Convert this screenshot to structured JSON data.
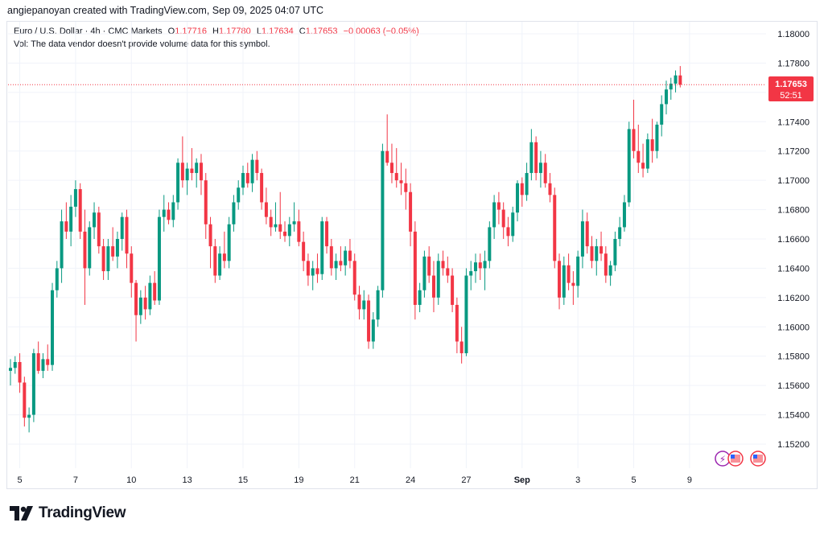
{
  "header": {
    "creator": "angiepanoyan created with TradingView.com, Sep 09, 2025 04:07 UTC"
  },
  "legend": {
    "symbol": "Euro / U.S. Dollar · 4h · CMC Markets",
    "o_label": "O",
    "o": "1.17716",
    "h_label": "H",
    "h": "1.17780",
    "l_label": "L",
    "l": "1.17634",
    "c_label": "C",
    "c": "1.17653",
    "change": "−0.00063 (−0.05%)",
    "vol_note": "Vol: The data vendor doesn't provide volume data for this symbol."
  },
  "price_tag": {
    "price": "1.17653",
    "countdown": "52:51"
  },
  "footer": {
    "brand": "TradingView"
  },
  "colors": {
    "up": "#089981",
    "down": "#f23645",
    "grid": "#f0f3fa",
    "text": "#131722"
  },
  "chart_data": {
    "type": "candlestick",
    "title": "Euro / U.S. Dollar · 4h · CMC Markets",
    "ylim": [
      1.1505,
      1.1815
    ],
    "y_ticks": [
      "1.18000",
      "1.17800",
      "1.17600",
      "1.17400",
      "1.17200",
      "1.17000",
      "1.16800",
      "1.16600",
      "1.16400",
      "1.16200",
      "1.16000",
      "1.15800",
      "1.15600",
      "1.15400",
      "1.15200"
    ],
    "x_ticks": [
      {
        "i": 2,
        "label": "5"
      },
      {
        "i": 14,
        "label": "7"
      },
      {
        "i": 26,
        "label": "10"
      },
      {
        "i": 38,
        "label": "13"
      },
      {
        "i": 50,
        "label": "15"
      },
      {
        "i": 62,
        "label": "19"
      },
      {
        "i": 74,
        "label": "21"
      },
      {
        "i": 86,
        "label": "24"
      },
      {
        "i": 98,
        "label": "27"
      },
      {
        "i": 110,
        "label": "Sep"
      },
      {
        "i": 122,
        "label": "3"
      },
      {
        "i": 134,
        "label": "5"
      },
      {
        "i": 146,
        "label": "9"
      }
    ],
    "current_price": 1.17653,
    "candles": [
      [
        1.157,
        1.1578,
        1.156,
        1.1572
      ],
      [
        1.1572,
        1.158,
        1.1568,
        1.1576
      ],
      [
        1.1576,
        1.1582,
        1.1555,
        1.1562
      ],
      [
        1.1562,
        1.1566,
        1.1532,
        1.1538
      ],
      [
        1.1538,
        1.1545,
        1.1528,
        1.154
      ],
      [
        1.154,
        1.1585,
        1.1535,
        1.1582
      ],
      [
        1.1582,
        1.159,
        1.1568,
        1.157
      ],
      [
        1.157,
        1.1582,
        1.1565,
        1.1578
      ],
      [
        1.1578,
        1.1588,
        1.157,
        1.1574
      ],
      [
        1.1574,
        1.163,
        1.157,
        1.1625
      ],
      [
        1.1625,
        1.1645,
        1.162,
        1.164
      ],
      [
        1.164,
        1.168,
        1.163,
        1.1672
      ],
      [
        1.1672,
        1.1685,
        1.166,
        1.1665
      ],
      [
        1.1665,
        1.169,
        1.1655,
        1.1682
      ],
      [
        1.1682,
        1.17,
        1.1675,
        1.1694
      ],
      [
        1.1694,
        1.1698,
        1.166,
        1.1665
      ],
      [
        1.1665,
        1.168,
        1.1615,
        1.164
      ],
      [
        1.164,
        1.1672,
        1.1635,
        1.1668
      ],
      [
        1.1668,
        1.1685,
        1.166,
        1.1678
      ],
      [
        1.1678,
        1.1682,
        1.165,
        1.1655
      ],
      [
        1.1655,
        1.166,
        1.1632,
        1.1638
      ],
      [
        1.1638,
        1.166,
        1.1632,
        1.1655
      ],
      [
        1.1655,
        1.1668,
        1.1645,
        1.1648
      ],
      [
        1.1648,
        1.1665,
        1.164,
        1.166
      ],
      [
        1.166,
        1.1678,
        1.1652,
        1.1675
      ],
      [
        1.1675,
        1.168,
        1.164,
        1.165
      ],
      [
        1.165,
        1.1655,
        1.162,
        1.163
      ],
      [
        1.163,
        1.1632,
        1.159,
        1.1608
      ],
      [
        1.1608,
        1.1625,
        1.1602,
        1.162
      ],
      [
        1.162,
        1.1628,
        1.1605,
        1.1612
      ],
      [
        1.1612,
        1.1635,
        1.1608,
        1.163
      ],
      [
        1.163,
        1.1638,
        1.1615,
        1.1618
      ],
      [
        1.1618,
        1.168,
        1.1615,
        1.1675
      ],
      [
        1.1675,
        1.169,
        1.1665,
        1.168
      ],
      [
        1.168,
        1.1685,
        1.167,
        1.1673
      ],
      [
        1.1673,
        1.169,
        1.1668,
        1.1685
      ],
      [
        1.1685,
        1.1715,
        1.168,
        1.1712
      ],
      [
        1.1712,
        1.173,
        1.1695,
        1.17
      ],
      [
        1.17,
        1.1712,
        1.169,
        1.1708
      ],
      [
        1.1708,
        1.1722,
        1.17,
        1.1705
      ],
      [
        1.1705,
        1.1715,
        1.1695,
        1.1712
      ],
      [
        1.1712,
        1.1718,
        1.169,
        1.17
      ],
      [
        1.17,
        1.1705,
        1.166,
        1.167
      ],
      [
        1.167,
        1.1675,
        1.164,
        1.1655
      ],
      [
        1.1655,
        1.166,
        1.163,
        1.1635
      ],
      [
        1.1635,
        1.1655,
        1.1632,
        1.165
      ],
      [
        1.165,
        1.1665,
        1.164,
        1.1645
      ],
      [
        1.1645,
        1.1675,
        1.164,
        1.167
      ],
      [
        1.167,
        1.169,
        1.1665,
        1.1685
      ],
      [
        1.1685,
        1.17,
        1.168,
        1.1695
      ],
      [
        1.1695,
        1.171,
        1.169,
        1.1705
      ],
      [
        1.1705,
        1.1712,
        1.1695,
        1.1698
      ],
      [
        1.1698,
        1.1718,
        1.1692,
        1.1714
      ],
      [
        1.1714,
        1.172,
        1.17,
        1.1705
      ],
      [
        1.1705,
        1.1708,
        1.168,
        1.1685
      ],
      [
        1.1685,
        1.1695,
        1.167,
        1.1675
      ],
      [
        1.1675,
        1.168,
        1.1662,
        1.1668
      ],
      [
        1.1668,
        1.1685,
        1.1665,
        1.167
      ],
      [
        1.167,
        1.1692,
        1.166,
        1.1665
      ],
      [
        1.1665,
        1.1672,
        1.1658,
        1.1662
      ],
      [
        1.1662,
        1.1675,
        1.1655,
        1.167
      ],
      [
        1.167,
        1.1685,
        1.1665,
        1.1672
      ],
      [
        1.1672,
        1.168,
        1.1655,
        1.1658
      ],
      [
        1.1658,
        1.1665,
        1.1638,
        1.1645
      ],
      [
        1.1645,
        1.165,
        1.1628,
        1.1635
      ],
      [
        1.1635,
        1.1645,
        1.1625,
        1.164
      ],
      [
        1.164,
        1.165,
        1.163,
        1.1636
      ],
      [
        1.1636,
        1.1675,
        1.1632,
        1.1672
      ],
      [
        1.1672,
        1.1675,
        1.165,
        1.1655
      ],
      [
        1.1655,
        1.166,
        1.1635,
        1.164
      ],
      [
        1.164,
        1.165,
        1.1632,
        1.1645
      ],
      [
        1.1645,
        1.1655,
        1.1638,
        1.1642
      ],
      [
        1.1642,
        1.1655,
        1.1635,
        1.1652
      ],
      [
        1.1652,
        1.166,
        1.164,
        1.1645
      ],
      [
        1.1645,
        1.165,
        1.1618,
        1.1622
      ],
      [
        1.1622,
        1.1628,
        1.1605,
        1.1612
      ],
      [
        1.1612,
        1.1625,
        1.1605,
        1.1618
      ],
      [
        1.1618,
        1.1622,
        1.1585,
        1.159
      ],
      [
        1.159,
        1.161,
        1.1585,
        1.1605
      ],
      [
        1.1605,
        1.1628,
        1.16,
        1.1625
      ],
      [
        1.1625,
        1.1725,
        1.162,
        1.172
      ],
      [
        1.172,
        1.1745,
        1.171,
        1.1712
      ],
      [
        1.1712,
        1.1725,
        1.1698,
        1.1705
      ],
      [
        1.1705,
        1.1722,
        1.1695,
        1.17
      ],
      [
        1.17,
        1.1712,
        1.169,
        1.1698
      ],
      [
        1.1698,
        1.1708,
        1.168,
        1.1692
      ],
      [
        1.1692,
        1.1698,
        1.1655,
        1.1665
      ],
      [
        1.1665,
        1.1672,
        1.1605,
        1.1615
      ],
      [
        1.1615,
        1.163,
        1.161,
        1.1625
      ],
      [
        1.1625,
        1.1652,
        1.162,
        1.1648
      ],
      [
        1.1648,
        1.1655,
        1.163,
        1.1635
      ],
      [
        1.1635,
        1.1645,
        1.161,
        1.162
      ],
      [
        1.162,
        1.165,
        1.1615,
        1.1645
      ],
      [
        1.1645,
        1.1652,
        1.1635,
        1.164
      ],
      [
        1.164,
        1.1648,
        1.163,
        1.1635
      ],
      [
        1.1635,
        1.164,
        1.161,
        1.1615
      ],
      [
        1.1615,
        1.162,
        1.1582,
        1.159
      ],
      [
        1.159,
        1.16,
        1.1575,
        1.1582
      ],
      [
        1.1582,
        1.164,
        1.158,
        1.1635
      ],
      [
        1.1635,
        1.1645,
        1.1625,
        1.1638
      ],
      [
        1.1638,
        1.165,
        1.163,
        1.1644
      ],
      [
        1.1644,
        1.165,
        1.1632,
        1.164
      ],
      [
        1.164,
        1.1652,
        1.1625,
        1.1645
      ],
      [
        1.1645,
        1.1672,
        1.164,
        1.1668
      ],
      [
        1.1668,
        1.169,
        1.166,
        1.1685
      ],
      [
        1.1685,
        1.1692,
        1.167,
        1.168
      ],
      [
        1.168,
        1.1685,
        1.166,
        1.1668
      ],
      [
        1.1668,
        1.1675,
        1.1655,
        1.1662
      ],
      [
        1.1662,
        1.1682,
        1.1658,
        1.1678
      ],
      [
        1.1678,
        1.17,
        1.1672,
        1.1698
      ],
      [
        1.1698,
        1.1702,
        1.1682,
        1.169
      ],
      [
        1.169,
        1.1712,
        1.1686,
        1.1705
      ],
      [
        1.1705,
        1.1735,
        1.17,
        1.1726
      ],
      [
        1.1726,
        1.173,
        1.17,
        1.1705
      ],
      [
        1.1705,
        1.172,
        1.1695,
        1.1712
      ],
      [
        1.1712,
        1.1718,
        1.1695,
        1.1698
      ],
      [
        1.1698,
        1.1705,
        1.1685,
        1.169
      ],
      [
        1.169,
        1.1695,
        1.164,
        1.1645
      ],
      [
        1.1645,
        1.165,
        1.1612,
        1.162
      ],
      [
        1.162,
        1.1648,
        1.1615,
        1.1642
      ],
      [
        1.1642,
        1.165,
        1.1625,
        1.163
      ],
      [
        1.163,
        1.1638,
        1.1615,
        1.1628
      ],
      [
        1.1628,
        1.1652,
        1.162,
        1.1648
      ],
      [
        1.1648,
        1.168,
        1.164,
        1.1672
      ],
      [
        1.1672,
        1.1678,
        1.165,
        1.1655
      ],
      [
        1.1655,
        1.1662,
        1.164,
        1.1645
      ],
      [
        1.1645,
        1.166,
        1.1635,
        1.1655
      ],
      [
        1.1655,
        1.1665,
        1.1645,
        1.165
      ],
      [
        1.165,
        1.1655,
        1.163,
        1.1635
      ],
      [
        1.1635,
        1.1645,
        1.1628,
        1.1642
      ],
      [
        1.1642,
        1.1665,
        1.1638,
        1.166
      ],
      [
        1.166,
        1.1675,
        1.1655,
        1.1668
      ],
      [
        1.1668,
        1.169,
        1.1665,
        1.1685
      ],
      [
        1.1685,
        1.174,
        1.1682,
        1.1735
      ],
      [
        1.1735,
        1.1755,
        1.1715,
        1.172
      ],
      [
        1.172,
        1.1738,
        1.1705,
        1.1712
      ],
      [
        1.1712,
        1.1725,
        1.1702,
        1.1708
      ],
      [
        1.1708,
        1.1732,
        1.1705,
        1.1728
      ],
      [
        1.1728,
        1.1742,
        1.1712,
        1.172
      ],
      [
        1.172,
        1.174,
        1.1715,
        1.1738
      ],
      [
        1.1738,
        1.1758,
        1.173,
        1.1752
      ],
      [
        1.1752,
        1.1768,
        1.1745,
        1.1762
      ],
      [
        1.1762,
        1.177,
        1.1755,
        1.1766
      ],
      [
        1.1766,
        1.1775,
        1.176,
        1.17716
      ],
      [
        1.17716,
        1.1778,
        1.17634,
        1.17653
      ]
    ]
  }
}
